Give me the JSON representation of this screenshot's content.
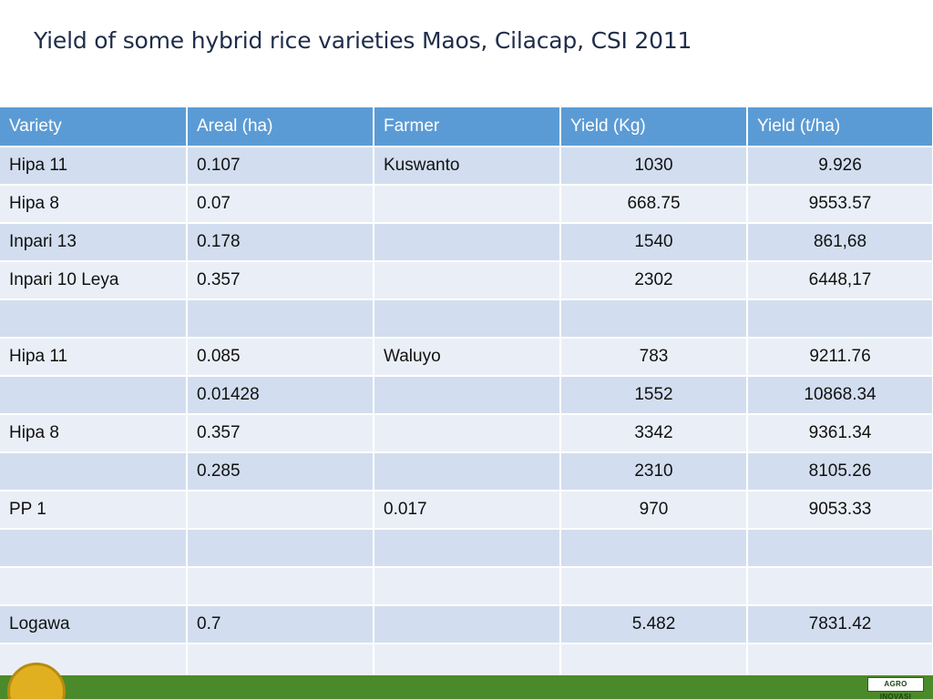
{
  "title": "Yield of some hybrid rice varieties Maos, Cilacap, CSI 2011",
  "table": {
    "headers": [
      "Variety",
      "Areal (ha)",
      "Farmer",
      "Yield  (Kg)",
      "Yield (t/ha)"
    ],
    "rows": [
      [
        "Hipa 11",
        "0.107",
        "Kuswanto",
        "1030",
        "9.926"
      ],
      [
        "Hipa 8",
        "0.07",
        "",
        "668.75",
        "9553.57"
      ],
      [
        "Inpari 13",
        "0.178",
        "",
        "1540",
        "861,68"
      ],
      [
        "Inpari 10 Leya",
        "0.357",
        "",
        "2302",
        "6448,17"
      ],
      [
        "",
        "",
        "",
        "",
        ""
      ],
      [
        "Hipa 11",
        "0.085",
        "Waluyo",
        "783",
        "9211.76"
      ],
      [
        "",
        "0.01428",
        "",
        "1552",
        "10868.34"
      ],
      [
        "Hipa 8",
        "0.357",
        "",
        "3342",
        "9361.34"
      ],
      [
        "",
        "0.285",
        "",
        "2310",
        "8105.26"
      ],
      [
        "PP 1",
        "",
        "0.017",
        "970",
        "9053.33"
      ],
      [
        "",
        "",
        "",
        "",
        ""
      ],
      [
        "",
        "",
        "",
        "",
        ""
      ],
      [
        "Logawa",
        "0.7",
        "",
        "5.482",
        "7831.42"
      ],
      [
        "",
        "",
        "",
        "",
        ""
      ]
    ]
  },
  "footer": {
    "badge_text": "AGRO INOVASI",
    "logo_icon": "agency-seal-icon"
  },
  "colors": {
    "header_bg": "#5b9bd5",
    "row_odd": "#d2deef",
    "row_even": "#eaeff7",
    "footer_bar": "#4a8a2a"
  }
}
